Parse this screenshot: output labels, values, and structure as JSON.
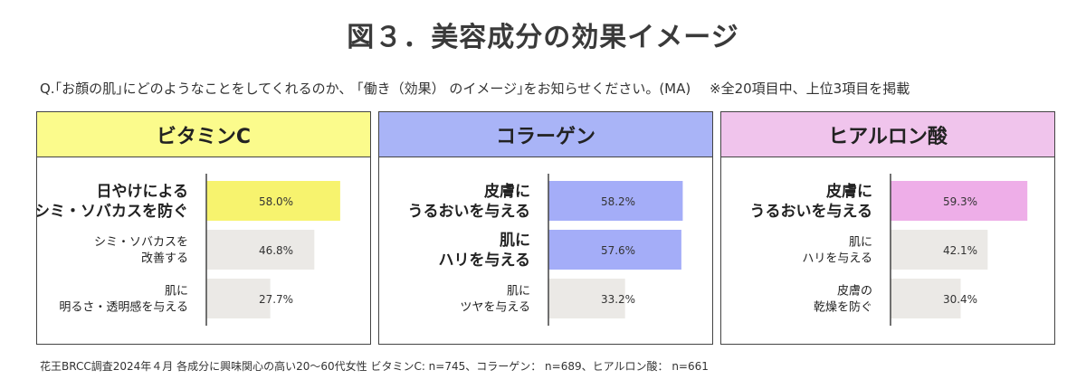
{
  "title": "図３．美容成分の効果イメージ",
  "question": "Q.｢お顔の肌｣にどのようなことをしてくれるのか、 ｢働き（効果） のイメージ｣をお知らせください。(MA)",
  "note": "※全20項目中、上位3項目を掲載",
  "footnote": "花王BRCC調査2024年４月 各成分に興味関心の高い20～60代女性 ビタミンC: n=745、コラーゲン： n=689、ヒアルロン酸： n=661",
  "chart_data": [
    {
      "type": "bar",
      "title": "ビタミンC",
      "header_color": "#fbfb8c",
      "highlight_color": "#f7f36e",
      "other_color": "#ebe9e6",
      "xlim": [
        0,
        100
      ],
      "bars": [
        {
          "label": [
            "日やけによる",
            "シミ・ソバカスを防ぐ"
          ],
          "value": 58.0,
          "value_label": "58.0%",
          "highlight": true
        },
        {
          "label": [
            "シミ・ソバカスを",
            "改善する"
          ],
          "value": 46.8,
          "value_label": "46.8%",
          "highlight": false
        },
        {
          "label": [
            "肌に",
            "明るさ・透明感を与える"
          ],
          "value": 27.7,
          "value_label": "27.7%",
          "highlight": false
        }
      ]
    },
    {
      "type": "bar",
      "title": "コラーゲン",
      "header_color": "#a9b4f7",
      "highlight_color": "#a4adf8",
      "other_color": "#ebe9e6",
      "xlim": [
        0,
        100
      ],
      "bars": [
        {
          "label": [
            "皮膚に",
            "うるおいを与える"
          ],
          "value": 58.2,
          "value_label": "58.2%",
          "highlight": true
        },
        {
          "label": [
            "肌に",
            "ハリを与える"
          ],
          "value": 57.6,
          "value_label": "57.6%",
          "highlight": true
        },
        {
          "label": [
            "肌に",
            "ツヤを与える"
          ],
          "value": 33.2,
          "value_label": "33.2%",
          "highlight": false
        }
      ]
    },
    {
      "type": "bar",
      "title": "ヒアルロン酸",
      "header_color": "#f0c4ec",
      "highlight_color": "#eeaee8",
      "other_color": "#ebe9e6",
      "xlim": [
        0,
        100
      ],
      "bars": [
        {
          "label": [
            "皮膚に",
            "うるおいを与える"
          ],
          "value": 59.3,
          "value_label": "59.3%",
          "highlight": true
        },
        {
          "label": [
            "肌に",
            "ハリを与える"
          ],
          "value": 42.1,
          "value_label": "42.1%",
          "highlight": false
        },
        {
          "label": [
            "皮膚の",
            "乾燥を防ぐ"
          ],
          "value": 30.4,
          "value_label": "30.4%",
          "highlight": false
        }
      ]
    }
  ]
}
